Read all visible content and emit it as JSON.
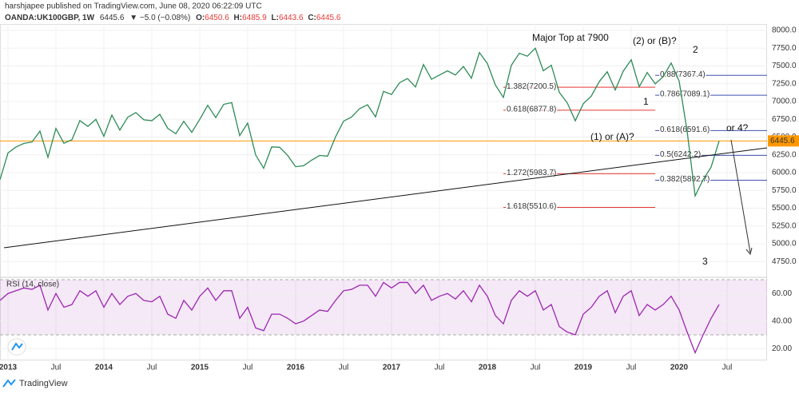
{
  "header": {
    "author": "harshjapee published on TradingView.com, June 08, 2020 06:22:09 UTC",
    "symbol": "OANDA:UK100GBP, 1W",
    "price": "6445.6",
    "change": "▼ −5.0 (−0.08%)",
    "open_label": "O:",
    "open": "6450.6",
    "high_label": "H:",
    "high": "6485.9",
    "low_label": "L:",
    "low": "6443.6",
    "close_label": "C:",
    "close": "6445.6"
  },
  "chart_data": [
    {
      "type": "line",
      "color": "#2e8b57",
      "x": [
        "2012-12",
        "2013-01",
        "2013-02",
        "2013-03",
        "2013-04",
        "2013-05",
        "2013-06",
        "2013-07",
        "2013-08",
        "2013-09",
        "2013-10",
        "2013-11",
        "2013-12",
        "2014-01",
        "2014-02",
        "2014-03",
        "2014-04",
        "2014-05",
        "2014-06",
        "2014-07",
        "2014-08",
        "2014-09",
        "2014-10",
        "2014-11",
        "2014-12",
        "2015-01",
        "2015-02",
        "2015-03",
        "2015-04",
        "2015-05",
        "2015-06",
        "2015-07",
        "2015-08",
        "2015-09",
        "2015-10",
        "2015-11",
        "2015-12",
        "2016-01",
        "2016-02",
        "2016-03",
        "2016-04",
        "2016-05",
        "2016-06",
        "2016-07",
        "2016-08",
        "2016-09",
        "2016-10",
        "2016-11",
        "2016-12",
        "2017-01",
        "2017-02",
        "2017-03",
        "2017-04",
        "2017-05",
        "2017-06",
        "2017-07",
        "2017-08",
        "2017-09",
        "2017-10",
        "2017-11",
        "2017-12",
        "2018-01",
        "2018-02",
        "2018-03",
        "2018-04",
        "2018-05",
        "2018-06",
        "2018-07",
        "2018-08",
        "2018-09",
        "2018-10",
        "2018-11",
        "2018-12",
        "2019-01",
        "2019-02",
        "2019-03",
        "2019-04",
        "2019-05",
        "2019-06",
        "2019-07",
        "2019-08",
        "2019-09",
        "2019-10",
        "2019-11",
        "2019-12",
        "2020-01",
        "2020-02",
        "2020-03",
        "2020-04",
        "2020-05",
        "2020-06"
      ],
      "values": [
        5900,
        6276,
        6360,
        6411,
        6430,
        6583,
        6215,
        6621,
        6412,
        6462,
        6731,
        6650,
        6749,
        6510,
        6809,
        6598,
        6780,
        6844,
        6743,
        6730,
        6820,
        6622,
        6546,
        6722,
        6566,
        6749,
        6946,
        6773,
        6960,
        6984,
        6521,
        6696,
        6248,
        6061,
        6361,
        6356,
        6242,
        6083,
        6097,
        6175,
        6241,
        6231,
        6504,
        6724,
        6781,
        6899,
        6954,
        6784,
        7142,
        7099,
        7263,
        7323,
        7204,
        7520,
        7313,
        7372,
        7431,
        7373,
        7493,
        7327,
        7688,
        7534,
        7232,
        7057,
        7509,
        7678,
        7637,
        7749,
        7432,
        7510,
        7128,
        6980,
        6728,
        6969,
        7075,
        7279,
        7418,
        7162,
        7426,
        7587,
        7207,
        7408,
        7248,
        7347,
        7542,
        7286,
        6581,
        5672,
        5901,
        6077,
        6446
      ],
      "xlim": [
        "2012-12",
        "2020-12"
      ],
      "xticks": [
        {
          "value": "2013-01",
          "label": "2013"
        },
        {
          "value": "2013-07",
          "label": "Jul"
        },
        {
          "value": "2014-01",
          "label": "2014"
        },
        {
          "value": "2014-07",
          "label": "Jul"
        },
        {
          "value": "2015-01",
          "label": "2015"
        },
        {
          "value": "2015-07",
          "label": "Jul"
        },
        {
          "value": "2016-01",
          "label": "2016"
        },
        {
          "value": "2016-07",
          "label": "Jul"
        },
        {
          "value": "2017-01",
          "label": "2017"
        },
        {
          "value": "2017-07",
          "label": "Jul"
        },
        {
          "value": "2018-01",
          "label": "2018"
        },
        {
          "value": "2018-07",
          "label": "Jul"
        },
        {
          "value": "2019-01",
          "label": "2019"
        },
        {
          "value": "2019-07",
          "label": "Jul"
        },
        {
          "value": "2020-01",
          "label": "2020"
        },
        {
          "value": "2020-07",
          "label": "Jul"
        }
      ],
      "ylim": [
        4550,
        8090
      ],
      "yticks": [
        {
          "value": 4750,
          "label": "4750.0"
        },
        {
          "value": 5000,
          "label": "5000.0"
        },
        {
          "value": 5250,
          "label": "5250.0"
        },
        {
          "value": 5500,
          "label": "5500.0"
        },
        {
          "value": 5750,
          "label": "5750.0"
        },
        {
          "value": 6000,
          "label": "6000.0"
        },
        {
          "value": 6250,
          "label": "6250.0"
        },
        {
          "value": 6500,
          "label": "6500.0"
        },
        {
          "value": 6750,
          "label": "6750.0"
        },
        {
          "value": 7000,
          "label": "7000.0"
        },
        {
          "value": 7250,
          "label": "7250.0"
        },
        {
          "value": 7500,
          "label": "7500.0"
        },
        {
          "value": 7750,
          "label": "7750.0"
        },
        {
          "value": 8000,
          "label": "8000.0"
        }
      ],
      "grid": true,
      "last_price": {
        "value": 6445.6,
        "label": "6445.6",
        "color": "#ff9800"
      },
      "fib_blue": [
        {
          "value": 7367.4,
          "label": "0.88(7367.4)"
        },
        {
          "value": 7089.1,
          "label": "0.786(7089.1)"
        },
        {
          "value": 6591.6,
          "label": "0.618(6591.6)"
        },
        {
          "value": 6242.2,
          "label": "0.5(6242.2)"
        },
        {
          "value": 5892.7,
          "label": "0.382(5892.7)"
        }
      ],
      "fib_red": [
        {
          "value": 7200.5,
          "label": "1.382(7200.5)"
        },
        {
          "value": 6877.8,
          "label": "0.618(6877.8)"
        },
        {
          "value": 5983.7,
          "label": "1.272(5983.7)"
        },
        {
          "value": 5510.6,
          "label": "1.618(5510.6)"
        }
      ],
      "annotations": [
        "Major Top at 7900",
        "(2) or (B)?",
        "2",
        "1",
        "(1) or (A)?",
        "or 4?",
        "3"
      ]
    },
    {
      "type": "line",
      "title": "RSI (14, close)",
      "color": "#9c27b0",
      "values": [
        55,
        60,
        62,
        64,
        63,
        66,
        48,
        60,
        50,
        52,
        62,
        58,
        62,
        50,
        60,
        52,
        58,
        60,
        55,
        54,
        58,
        45,
        42,
        55,
        48,
        58,
        64,
        55,
        62,
        62,
        42,
        50,
        35,
        33,
        45,
        45,
        42,
        38,
        40,
        44,
        48,
        47,
        55,
        62,
        63,
        66,
        66,
        58,
        68,
        64,
        68,
        68,
        60,
        66,
        55,
        58,
        60,
        56,
        62,
        54,
        66,
        58,
        44,
        38,
        55,
        62,
        58,
        62,
        48,
        52,
        36,
        32,
        30,
        45,
        50,
        58,
        62,
        46,
        58,
        62,
        44,
        52,
        48,
        52,
        58,
        48,
        32,
        17,
        30,
        42,
        52
      ],
      "ylim": [
        12,
        70
      ],
      "yticks": [
        {
          "value": 20,
          "label": "20.00"
        },
        {
          "value": 40,
          "label": "40.00"
        },
        {
          "value": 60,
          "label": "60.00"
        }
      ],
      "band": [
        30,
        70
      ]
    }
  ],
  "footer": {
    "brand": "TradingView"
  }
}
